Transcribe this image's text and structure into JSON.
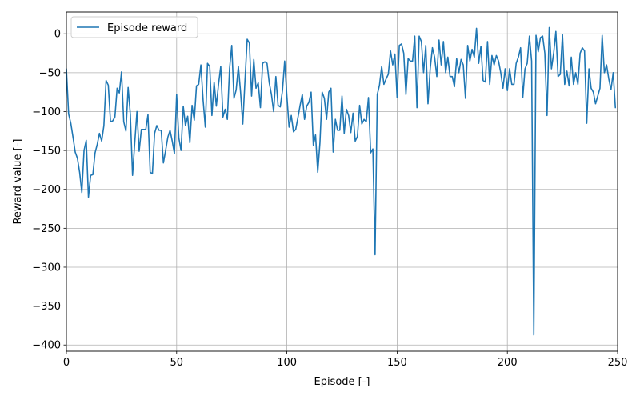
{
  "chart_data": {
    "type": "line",
    "xlabel": "Episode [-]",
    "ylabel": "Reward value [-]",
    "xlim": [
      0,
      250
    ],
    "ylim": [
      -408,
      28
    ],
    "x_ticks": [
      0,
      50,
      100,
      150,
      200,
      250
    ],
    "y_ticks": [
      0,
      -50,
      -100,
      -150,
      -200,
      -250,
      -300,
      -350,
      -400
    ],
    "x_tick_labels": [
      "0",
      "50",
      "100",
      "150",
      "200",
      "250"
    ],
    "y_tick_labels": [
      "0",
      "−50",
      "−100",
      "−150",
      "−200",
      "−250",
      "−300",
      "−350",
      "−400"
    ],
    "grid": true,
    "legend_position": "top-left",
    "colors": {
      "series": "#1f77b4",
      "grid": "#b0b0b0",
      "axes": "#000000"
    },
    "series": [
      {
        "name": "Episode reward",
        "x_start": 0,
        "x_step": 1,
        "values": [
          -45,
          -103,
          -115,
          -133,
          -152,
          -160,
          -178,
          -204,
          -150,
          -137,
          -210,
          -182,
          -181,
          -153,
          -142,
          -128,
          -138,
          -118,
          -60,
          -66,
          -113,
          -112,
          -107,
          -70,
          -76,
          -49,
          -113,
          -125,
          -69,
          -104,
          -182,
          -140,
          -100,
          -151,
          -123,
          -123,
          -123,
          -104,
          -178,
          -180,
          -128,
          -118,
          -124,
          -124,
          -166,
          -150,
          -133,
          -124,
          -138,
          -154,
          -78,
          -134,
          -150,
          -93,
          -118,
          -106,
          -140,
          -92,
          -111,
          -67,
          -65,
          -40,
          -85,
          -120,
          -38,
          -42,
          -105,
          -62,
          -93,
          -65,
          -42,
          -107,
          -97,
          -110,
          -45,
          -15,
          -83,
          -72,
          -42,
          -75,
          -116,
          -60,
          -7,
          -12,
          -80,
          -33,
          -70,
          -63,
          -95,
          -38,
          -36,
          -38,
          -63,
          -78,
          -100,
          -55,
          -92,
          -94,
          -73,
          -35,
          -80,
          -120,
          -105,
          -126,
          -123,
          -108,
          -92,
          -78,
          -110,
          -93,
          -88,
          -75,
          -143,
          -130,
          -178,
          -140,
          -75,
          -83,
          -110,
          -75,
          -70,
          -152,
          -110,
          -124,
          -124,
          -80,
          -128,
          -97,
          -105,
          -127,
          -102,
          -138,
          -132,
          -92,
          -116,
          -110,
          -113,
          -82,
          -153,
          -148,
          -284,
          -78,
          -66,
          -42,
          -65,
          -58,
          -52,
          -22,
          -40,
          -26,
          -82,
          -15,
          -13,
          -25,
          -78,
          -32,
          -35,
          -35,
          -3,
          -95,
          -3,
          -10,
          -50,
          -15,
          -90,
          -45,
          -18,
          -30,
          -55,
          -8,
          -40,
          -10,
          -50,
          -30,
          -55,
          -55,
          -68,
          -32,
          -50,
          -33,
          -40,
          -83,
          -15,
          -35,
          -20,
          -30,
          7,
          -38,
          -16,
          -60,
          -62,
          -10,
          -65,
          -28,
          -40,
          -28,
          -35,
          -50,
          -70,
          -45,
          -73,
          -45,
          -65,
          -65,
          -38,
          -30,
          -18,
          -82,
          -45,
          -38,
          -3,
          -35,
          -387,
          -2,
          -23,
          -5,
          -3,
          -25,
          -105,
          8,
          -45,
          -25,
          3,
          -55,
          -52,
          -1,
          -65,
          -48,
          -67,
          -30,
          -65,
          -50,
          -65,
          -25,
          -18,
          -22,
          -115,
          -45,
          -70,
          -75,
          -90,
          -80,
          -70,
          -2,
          -50,
          -40,
          -58,
          -72,
          -50,
          -95
        ]
      }
    ]
  }
}
